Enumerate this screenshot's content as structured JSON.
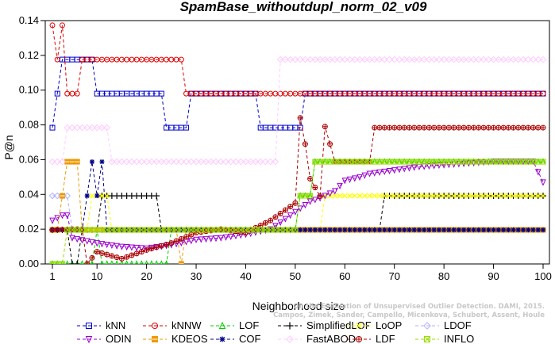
{
  "chart_data": {
    "type": "line",
    "title": "SpamBase_withoutdupl_norm_02_v09",
    "xlabel": "Neighborhood size",
    "ylabel": "P@n",
    "xlim": [
      1,
      100
    ],
    "ylim": [
      0,
      0.14
    ],
    "xticks": [
      1,
      10,
      20,
      30,
      40,
      50,
      60,
      70,
      80,
      90,
      100
    ],
    "yticks": [
      0.0,
      0.02,
      0.04,
      0.06,
      0.08,
      0.1,
      0.12,
      0.14
    ],
    "ytick_labels": [
      "0.00",
      "0.02",
      "0.04",
      "0.06",
      "0.08",
      "0.10",
      "0.12",
      "0.14"
    ],
    "grid": false,
    "legend_position": "bottom",
    "credit": [
      "Campos, Zimek, Sander, Campello, Micenkova, Schubert, Assent, Houle",
      "On the Evaluation of Unsupervised Outlier Detection. DAMI, 2015."
    ],
    "series": [
      {
        "name": "kNN",
        "color": "#0000cc",
        "marker": "square",
        "points": [
          [
            1,
            0.0784
          ],
          [
            2,
            0.098
          ],
          [
            3,
            0.1176
          ],
          [
            9,
            0.1176
          ],
          [
            10,
            0.098
          ],
          [
            23,
            0.098
          ],
          [
            24,
            0.0784
          ],
          [
            28,
            0.0784
          ],
          [
            29,
            0.098
          ],
          [
            42,
            0.098
          ],
          [
            43,
            0.0784
          ],
          [
            51,
            0.0784
          ],
          [
            52,
            0.098
          ],
          [
            100,
            0.098
          ]
        ]
      },
      {
        "name": "kNNW",
        "color": "#dd0000",
        "marker": "circle",
        "points": [
          [
            1,
            0.1373
          ],
          [
            2,
            0.1176
          ],
          [
            3,
            0.1373
          ],
          [
            4,
            0.098
          ],
          [
            6,
            0.098
          ],
          [
            7,
            0.1176
          ],
          [
            27,
            0.1176
          ],
          [
            28,
            0.098
          ],
          [
            100,
            0.098
          ]
        ]
      },
      {
        "name": "LOF",
        "color": "#00cc00",
        "marker": "triangle-up",
        "points": [
          [
            1,
            0
          ],
          [
            9,
            0
          ],
          [
            10,
            0.0196
          ],
          [
            11,
            0
          ],
          [
            24,
            0
          ],
          [
            25,
            0.0196
          ],
          [
            50,
            0.0196
          ],
          [
            51,
            0.0392
          ],
          [
            53,
            0.0392
          ],
          [
            54,
            0.0588
          ],
          [
            100,
            0.0588
          ]
        ]
      },
      {
        "name": "SimplifiedLOF",
        "color": "#000000",
        "marker": "plus",
        "points": [
          [
            1,
            0.0196
          ],
          [
            4,
            0.0196
          ],
          [
            5,
            0
          ],
          [
            7,
            0.0196
          ],
          [
            10,
            0.0196
          ],
          [
            11,
            0.0392
          ],
          [
            22,
            0.0392
          ],
          [
            23,
            0.0196
          ],
          [
            66,
            0.0196
          ],
          [
            68,
            0.0392
          ],
          [
            100,
            0.0392
          ]
        ]
      },
      {
        "name": "LoOP",
        "color": "#ffff00",
        "marker": "cross",
        "points": [
          [
            1,
            0.0196
          ],
          [
            8,
            0.0196
          ],
          [
            9,
            0.0392
          ],
          [
            12,
            0.0392
          ],
          [
            13,
            0.0196
          ],
          [
            55,
            0.0196
          ],
          [
            56,
            0.0392
          ],
          [
            100,
            0.0392
          ]
        ]
      },
      {
        "name": "LDOF",
        "color": "#b0b0ff",
        "marker": "diamond",
        "points": [
          [
            1,
            0.0392
          ],
          [
            4,
            0.0392
          ],
          [
            5,
            0.0196
          ],
          [
            100,
            0.0196
          ]
        ]
      },
      {
        "name": "ODIN",
        "color": "#9900cc",
        "marker": "triangle-down",
        "points": [
          [
            1,
            0.025
          ],
          [
            3,
            0.028
          ],
          [
            5,
            0.015
          ],
          [
            10,
            0.012
          ],
          [
            15,
            0.01
          ],
          [
            20,
            0.009
          ],
          [
            25,
            0.011
          ],
          [
            30,
            0.014
          ],
          [
            35,
            0.015
          ],
          [
            40,
            0.017
          ],
          [
            45,
            0.02
          ],
          [
            48,
            0.026
          ],
          [
            50,
            0.03
          ],
          [
            53,
            0.036
          ],
          [
            55,
            0.038
          ],
          [
            58,
            0.042
          ],
          [
            60,
            0.048
          ],
          [
            63,
            0.05
          ],
          [
            65,
            0.052
          ],
          [
            70,
            0.054
          ],
          [
            75,
            0.056
          ],
          [
            80,
            0.057
          ],
          [
            85,
            0.058
          ],
          [
            90,
            0.059
          ],
          [
            98,
            0.059
          ],
          [
            100,
            0.047
          ]
        ]
      },
      {
        "name": "KDEOS",
        "color": "#ee9900",
        "marker": "square-filled",
        "points": [
          [
            1,
            0.0196
          ],
          [
            3,
            0.0392
          ],
          [
            4,
            0.0588
          ],
          [
            6,
            0.0588
          ],
          [
            7,
            0.0196
          ],
          [
            26,
            0.0196
          ],
          [
            27,
            0
          ],
          [
            28,
            0.0196
          ],
          [
            100,
            0.0196
          ]
        ]
      },
      {
        "name": "COF",
        "color": "#000088",
        "marker": "star",
        "points": [
          [
            1,
            0.0196
          ],
          [
            7,
            0.0196
          ],
          [
            8,
            0.0392
          ],
          [
            9,
            0.0588
          ],
          [
            10,
            0.0392
          ],
          [
            11,
            0.0588
          ],
          [
            12,
            0.0196
          ],
          [
            100,
            0.0196
          ]
        ]
      },
      {
        "name": "FastABOD",
        "color": "#ffccff",
        "marker": "diamond-open",
        "points": [
          [
            1,
            0.0588
          ],
          [
            3,
            0.0588
          ],
          [
            4,
            0.0784
          ],
          [
            12,
            0.0784
          ],
          [
            13,
            0.0588
          ],
          [
            46,
            0.0588
          ],
          [
            47,
            0.1176
          ],
          [
            100,
            0.1176
          ]
        ]
      },
      {
        "name": "LDF",
        "color": "#aa0000",
        "marker": "circle-plus",
        "points": [
          [
            1,
            0.0196
          ],
          [
            5,
            0.02
          ],
          [
            8,
            0.0
          ],
          [
            10,
            0.007
          ],
          [
            15,
            0.003
          ],
          [
            20,
            0.008
          ],
          [
            25,
            0.012
          ],
          [
            30,
            0.018
          ],
          [
            35,
            0.02
          ],
          [
            40,
            0.018
          ],
          [
            45,
            0.025
          ],
          [
            50,
            0.035
          ],
          [
            51,
            0.084
          ],
          [
            52,
            0.069
          ],
          [
            53,
            0.049
          ],
          [
            55,
            0.039
          ],
          [
            56,
            0.079
          ],
          [
            57,
            0.069
          ],
          [
            58,
            0.0588
          ],
          [
            65,
            0.0588
          ],
          [
            66,
            0.0784
          ],
          [
            100,
            0.0784
          ]
        ]
      },
      {
        "name": "INFLO",
        "color": "#99dd00",
        "marker": "hash",
        "points": [
          [
            1,
            0
          ],
          [
            4,
            0.0196
          ],
          [
            25,
            0.0196
          ],
          [
            50,
            0.0196
          ],
          [
            51,
            0.0392
          ],
          [
            53,
            0.0392
          ],
          [
            54,
            0.0588
          ],
          [
            100,
            0.0588
          ]
        ]
      }
    ]
  }
}
